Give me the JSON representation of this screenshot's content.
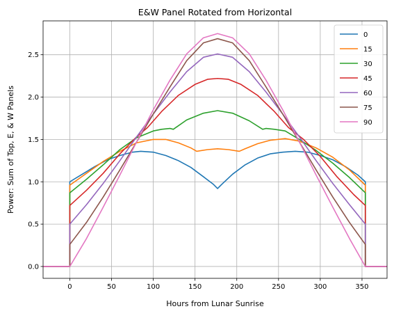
{
  "chart_data": {
    "type": "line",
    "title": "E&W Panel Rotated from Horizontal",
    "xlabel": "Hours from Lunar Sunrise",
    "ylabel": "Power: Sum of Top, E, & W Panels",
    "xlim": [
      -32,
      380
    ],
    "ylim": [
      -0.14,
      2.9
    ],
    "xticks": [
      0,
      50,
      100,
      150,
      200,
      250,
      300,
      350
    ],
    "xtick_labels": [
      "0",
      "50",
      "100",
      "150",
      "200",
      "250",
      "300",
      "350"
    ],
    "yticks": [
      0.0,
      0.5,
      1.0,
      1.5,
      2.0,
      2.5
    ],
    "ytick_labels": [
      "0.0",
      "0.5",
      "1.0",
      "1.5",
      "2.0",
      "2.5"
    ],
    "grid": true,
    "legend_position": "top-right",
    "series": [
      {
        "name": "0",
        "color": "#1f77b4",
        "x": [
          -32,
          0,
          0,
          15,
          30,
          45,
          60,
          75,
          85,
          100,
          115,
          130,
          145,
          160,
          172,
          177,
          182,
          195,
          210,
          225,
          240,
          255,
          270,
          285,
          300,
          315,
          330,
          345,
          354,
          354,
          380
        ],
        "y": [
          0,
          0,
          1.0,
          1.09,
          1.18,
          1.26,
          1.31,
          1.35,
          1.36,
          1.35,
          1.31,
          1.25,
          1.17,
          1.06,
          0.97,
          0.92,
          0.97,
          1.09,
          1.2,
          1.28,
          1.33,
          1.35,
          1.36,
          1.35,
          1.31,
          1.26,
          1.18,
          1.08,
          1.0,
          0,
          0
        ]
      },
      {
        "name": "15",
        "color": "#ff7f0e",
        "x": [
          -32,
          0,
          0,
          20,
          40,
          60,
          80,
          100,
          115,
          130,
          145,
          152,
          165,
          177,
          190,
          203,
          210,
          225,
          240,
          258,
          275,
          295,
          315,
          335,
          354,
          354,
          380
        ],
        "y": [
          0,
          0,
          0.96,
          1.1,
          1.24,
          1.36,
          1.46,
          1.5,
          1.5,
          1.46,
          1.4,
          1.36,
          1.38,
          1.39,
          1.38,
          1.36,
          1.39,
          1.45,
          1.49,
          1.51,
          1.48,
          1.4,
          1.29,
          1.14,
          0.96,
          0,
          0
        ]
      },
      {
        "name": "30",
        "color": "#2ca02c",
        "x": [
          -32,
          0,
          0,
          20,
          40,
          60,
          80,
          100,
          110,
          120,
          124,
          140,
          160,
          177,
          195,
          215,
          231,
          235,
          245,
          258,
          275,
          295,
          315,
          335,
          354,
          354,
          380
        ],
        "y": [
          0,
          0,
          0.87,
          1.03,
          1.2,
          1.38,
          1.52,
          1.6,
          1.62,
          1.63,
          1.62,
          1.73,
          1.81,
          1.84,
          1.81,
          1.72,
          1.62,
          1.63,
          1.62,
          1.6,
          1.5,
          1.37,
          1.22,
          1.05,
          0.87,
          0,
          0
        ]
      },
      {
        "name": "45",
        "color": "#d62728",
        "x": [
          -32,
          0,
          0,
          20,
          40,
          60,
          80,
          93,
          110,
          130,
          150,
          165,
          177,
          190,
          205,
          225,
          245,
          262,
          280,
          300,
          320,
          340,
          354,
          354,
          380
        ],
        "y": [
          0,
          0,
          0.72,
          0.9,
          1.1,
          1.33,
          1.53,
          1.64,
          1.83,
          2.02,
          2.15,
          2.21,
          2.22,
          2.21,
          2.15,
          2.02,
          1.83,
          1.64,
          1.5,
          1.3,
          1.06,
          0.85,
          0.72,
          0,
          0
        ]
      },
      {
        "name": "60",
        "color": "#9467bd",
        "x": [
          -32,
          0,
          0,
          20,
          40,
          60,
          80,
          100,
          120,
          140,
          160,
          177,
          195,
          215,
          235,
          255,
          275,
          295,
          315,
          335,
          354,
          354,
          380
        ],
        "y": [
          0,
          0,
          0.5,
          0.73,
          0.98,
          1.25,
          1.53,
          1.8,
          2.06,
          2.3,
          2.47,
          2.51,
          2.47,
          2.3,
          2.06,
          1.8,
          1.53,
          1.25,
          0.98,
          0.73,
          0.5,
          0,
          0
        ]
      },
      {
        "name": "75",
        "color": "#8c564b",
        "x": [
          -32,
          0,
          0,
          20,
          40,
          60,
          80,
          100,
          120,
          140,
          160,
          177,
          195,
          215,
          235,
          255,
          275,
          295,
          315,
          335,
          354,
          354,
          380
        ],
        "y": [
          0,
          0,
          0.26,
          0.52,
          0.82,
          1.14,
          1.47,
          1.8,
          2.12,
          2.43,
          2.64,
          2.69,
          2.64,
          2.43,
          2.12,
          1.8,
          1.47,
          1.14,
          0.82,
          0.52,
          0.26,
          0,
          0
        ]
      },
      {
        "name": "90",
        "color": "#e377c2",
        "x": [
          -32,
          0,
          20,
          40,
          60,
          80,
          100,
          120,
          140,
          160,
          177,
          195,
          215,
          235,
          255,
          275,
          295,
          315,
          335,
          354,
          380
        ],
        "y": [
          0,
          0,
          0.33,
          0.7,
          1.08,
          1.47,
          1.85,
          2.2,
          2.51,
          2.7,
          2.75,
          2.7,
          2.51,
          2.2,
          1.85,
          1.47,
          1.08,
          0.7,
          0.33,
          0,
          0
        ]
      }
    ]
  }
}
